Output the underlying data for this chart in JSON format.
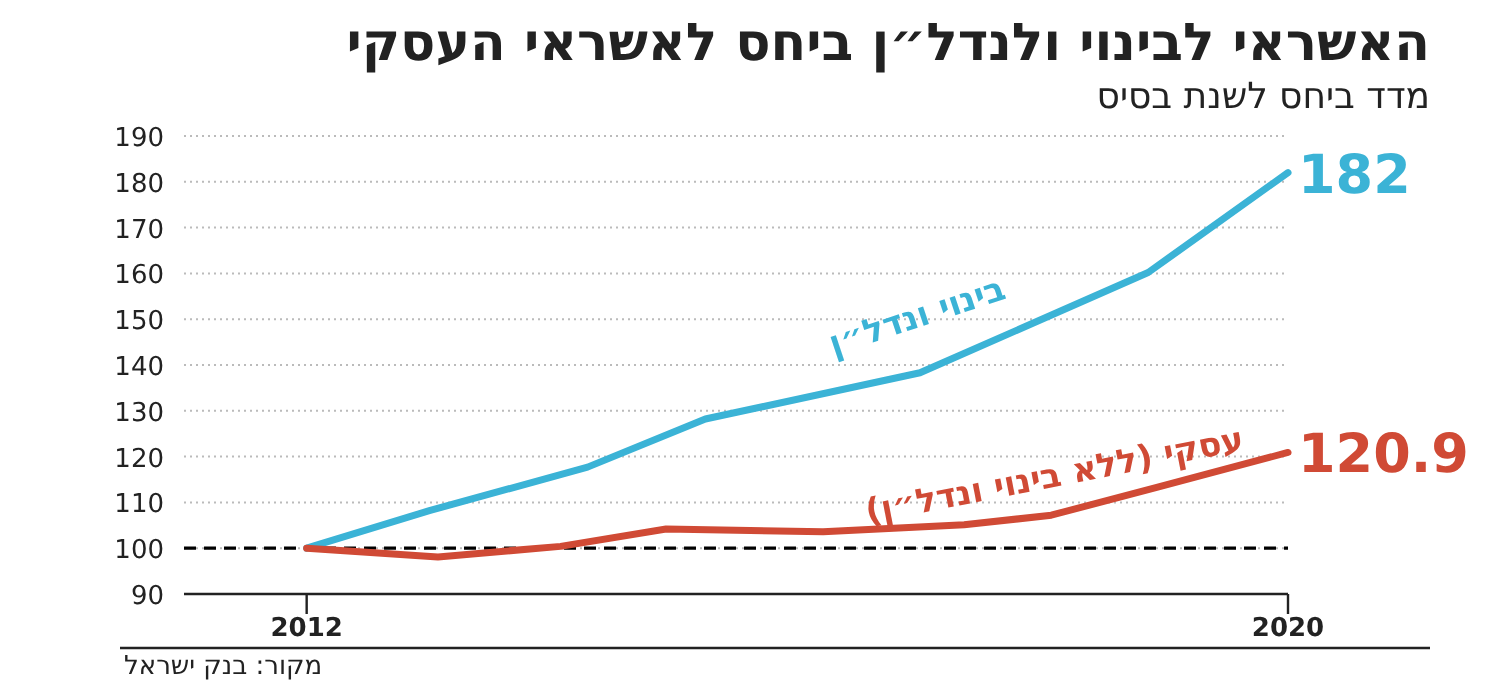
{
  "chart_data": {
    "type": "line",
    "title": "האשראי לבינוי ולנדל״ן ביחס לאשראי העסקי",
    "subtitle": "מדד ביחס לשנת בסיס",
    "annotations": [
      "מקור: בנק ישראל"
    ],
    "xlim": [
      2011,
      2020
    ],
    "xticks": [
      2012,
      2020
    ],
    "ylim": [
      90,
      190
    ],
    "yticks": [
      90,
      100,
      110,
      120,
      130,
      140,
      150,
      160,
      170,
      180,
      190
    ],
    "grid": "y",
    "ref_lines": [
      {
        "axis": "y",
        "value": 100,
        "color": "#000000",
        "line_style": "dashed"
      }
    ],
    "series": [
      {
        "name": "בינוי ונדל״ן",
        "color": "#3bb3d6",
        "x": [
          2012,
          2013,
          2014.29,
          2015.25,
          2017,
          2018.86,
          2020
        ],
        "values": [
          100,
          108.2,
          117.7,
          128.2,
          138.3,
          160.2,
          182
        ],
        "value_labels": [
          null,
          null,
          null,
          null,
          null,
          null,
          "182"
        ]
      },
      {
        "name": "עסקי (ללא בינוי ונדל״ן)",
        "color": "#d04a35",
        "x": [
          2012,
          2013.07,
          2014.07,
          2014.93,
          2016.21,
          2017.36,
          2018.07,
          2018.93,
          2020
        ],
        "values": [
          100,
          98.1,
          100.4,
          104.2,
          103.6,
          105.1,
          107.2,
          113.3,
          120.9
        ],
        "value_labels": [
          null,
          null,
          null,
          null,
          null,
          null,
          null,
          null,
          "120.9"
        ]
      }
    ]
  }
}
